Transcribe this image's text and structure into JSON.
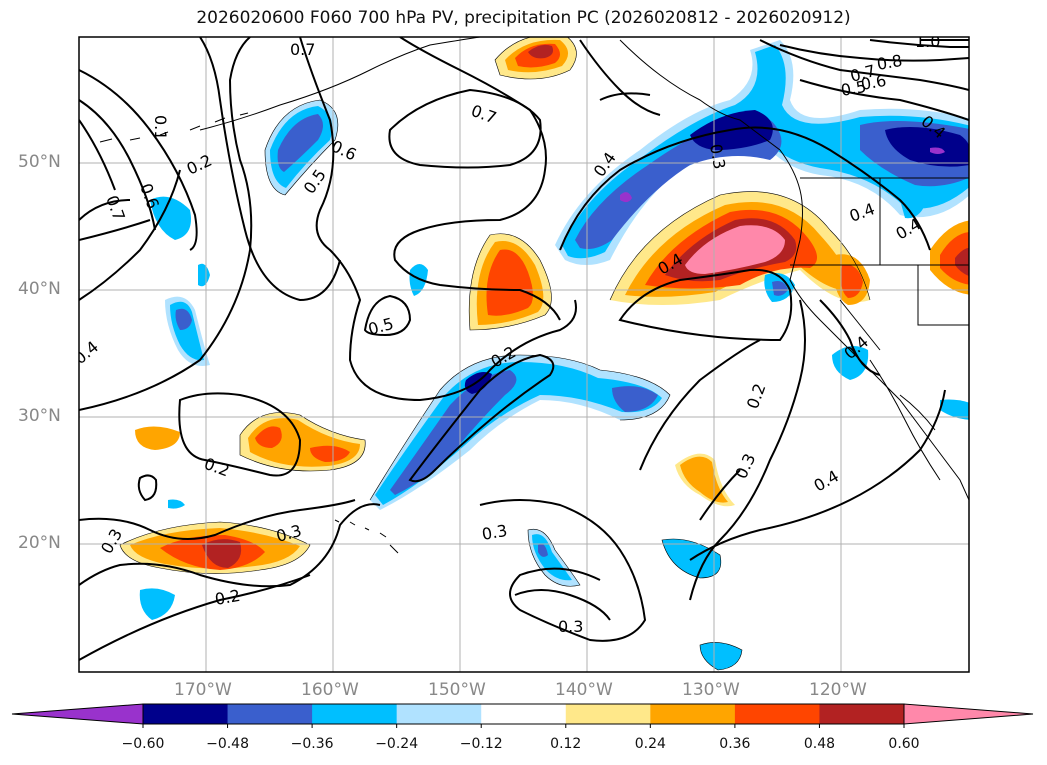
{
  "title": "2026020600 F060 700 hPa PV, precipitation PC (2026020812 - 2026020912)",
  "lat_ticks": [
    "50°N",
    "40°N",
    "30°N",
    "20°N"
  ],
  "lon_ticks": [
    "170°W",
    "160°W",
    "150°W",
    "140°W",
    "130°W",
    "120°W"
  ],
  "colorbar": {
    "ticks": [
      "−0.60",
      "−0.48",
      "−0.36",
      "−0.24",
      "−0.12",
      "0.12",
      "0.24",
      "0.36",
      "0.48",
      "0.60"
    ],
    "colors": [
      "#9932cc",
      "#00008b",
      "#3a5fcd",
      "#00bfff",
      "#b0e2ff",
      "#ffffff",
      "#ffe88a",
      "#ffa500",
      "#ff4500",
      "#b22222",
      "#ff88aa"
    ]
  },
  "contour_labels": [
    "0.7",
    "0.7",
    "0.6",
    "0.5",
    "0.2",
    "0.1",
    "0.7",
    "0.6",
    "0.4",
    "0.4",
    "0.5",
    "0.2",
    "0.2",
    "0.3",
    "0.3",
    "0.2",
    "0.3",
    "0.4",
    "0.3",
    "0.2",
    "0.3",
    "0.4",
    "0.4",
    "0.4",
    "0.3",
    "0.4",
    "0.8",
    "0.7",
    "0.6",
    "0.5",
    "1.0",
    "0.4"
  ]
}
